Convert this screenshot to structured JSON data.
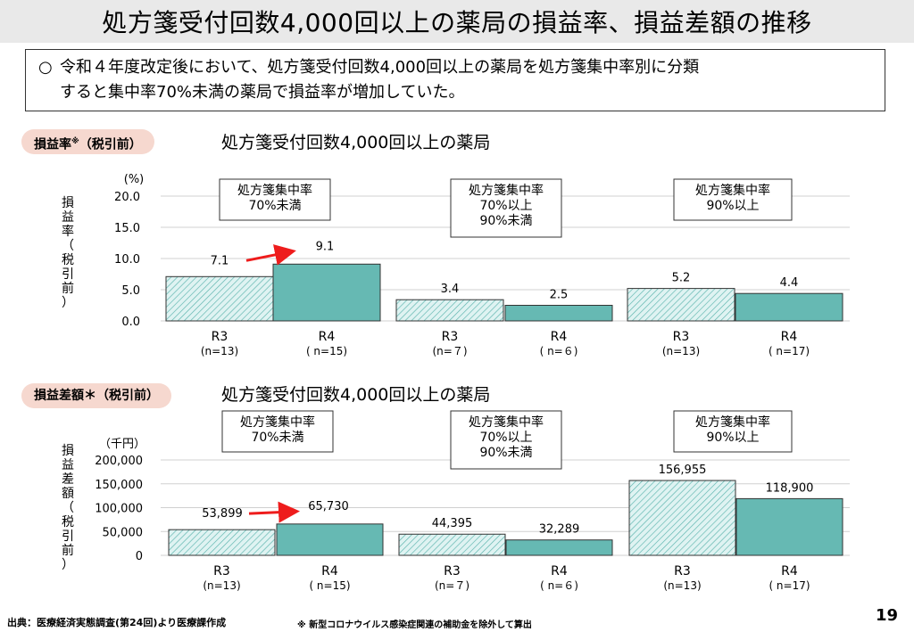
{
  "title": "処方箋受付回数4,000回以上の薬局の損益率、損益差額の推移",
  "summary": {
    "bullet": "○",
    "line1": "令和４年度改定後において、処方箋受付回数4,000回以上の薬局を処方箋集中率別に分類",
    "line2": "すると集中率70%未満の薬局で損益率が増加していた。"
  },
  "sections": {
    "top": {
      "pill": "損益率",
      "pill_mark": "※",
      "pill_suffix": "（税引前）",
      "heading": "処方箋受付回数4,000回以上の薬局"
    },
    "bottom": {
      "pill": "損益差額＊（税引前）",
      "heading": "処方箋受付回数4,000回以上の薬局"
    }
  },
  "footer": {
    "source": "出典：医療経済実態調査(第24回)より医療課作成",
    "note": "※ 新型コロナウイルス感染症関連の補助金を除外して算出",
    "page": "19"
  },
  "colors": {
    "r3_fill": "#dff3f2",
    "r3_hatch": "#5bb3ad",
    "r4_fill": "#66b9b3",
    "arrow": "#ee1c1c",
    "title_bg": "#e9e9e9",
    "pill_bg": "#f6d8cf"
  },
  "chart_data": [
    {
      "type": "bar",
      "title": "処方箋受付回数4,000回以上の薬局",
      "unit": "(%)",
      "ylabel": "損益率（税引前）",
      "ylim": [
        0,
        20
      ],
      "yticks": [
        "20.0",
        "15.0",
        "10.0",
        "5.0",
        "0.0"
      ],
      "groups": [
        {
          "label": [
            "処方箋集中率",
            "70%未満"
          ],
          "bars": [
            {
              "year": "R3",
              "n": "(n=13)",
              "value": 7.1,
              "label": "7.1"
            },
            {
              "year": "R4",
              "n": "( n=15)",
              "value": 9.1,
              "label": "9.1"
            }
          ],
          "arrow": true
        },
        {
          "label": [
            "処方箋集中率",
            "70%以上",
            "90%未満"
          ],
          "bars": [
            {
              "year": "R3",
              "n": "(n=７)",
              "value": 3.4,
              "label": "3.4"
            },
            {
              "year": "R4",
              "n": "( n=６)",
              "value": 2.5,
              "label": "2.5"
            }
          ],
          "arrow": false
        },
        {
          "label": [
            "処方箋集中率",
            "90%以上"
          ],
          "bars": [
            {
              "year": "R3",
              "n": "(n=13)",
              "value": 5.2,
              "label": "5.2"
            },
            {
              "year": "R4",
              "n": "( n=17)",
              "value": 4.4,
              "label": "4.4"
            }
          ],
          "arrow": false
        }
      ]
    },
    {
      "type": "bar",
      "title": "処方箋受付回数4,000回以上の薬局",
      "unit": "（千円）",
      "ylabel": "損益差額（税引前）",
      "ylim": [
        0,
        200000
      ],
      "yticks": [
        "200,000",
        "150,000",
        "100,000",
        "50,000",
        "0"
      ],
      "groups": [
        {
          "label": [
            "処方箋集中率",
            "70%未満"
          ],
          "bars": [
            {
              "year": "R3",
              "n": "(n=13)",
              "value": 53899,
              "label": "53,899"
            },
            {
              "year": "R4",
              "n": "( n=15)",
              "value": 65730,
              "label": "65,730"
            }
          ],
          "arrow": true
        },
        {
          "label": [
            "処方箋集中率",
            "70%以上",
            "90%未満"
          ],
          "bars": [
            {
              "year": "R3",
              "n": "(n=７)",
              "value": 44395,
              "label": "44,395"
            },
            {
              "year": "R4",
              "n": "( n=６)",
              "value": 32289,
              "label": "32,289"
            }
          ],
          "arrow": false
        },
        {
          "label": [
            "処方箋集中率",
            "90%以上"
          ],
          "bars": [
            {
              "year": "R3",
              "n": "(n=13)",
              "value": 156955,
              "label": "156,955"
            },
            {
              "year": "R4",
              "n": "( n=17)",
              "value": 118900,
              "label": "118,900"
            }
          ],
          "arrow": false
        }
      ]
    }
  ]
}
